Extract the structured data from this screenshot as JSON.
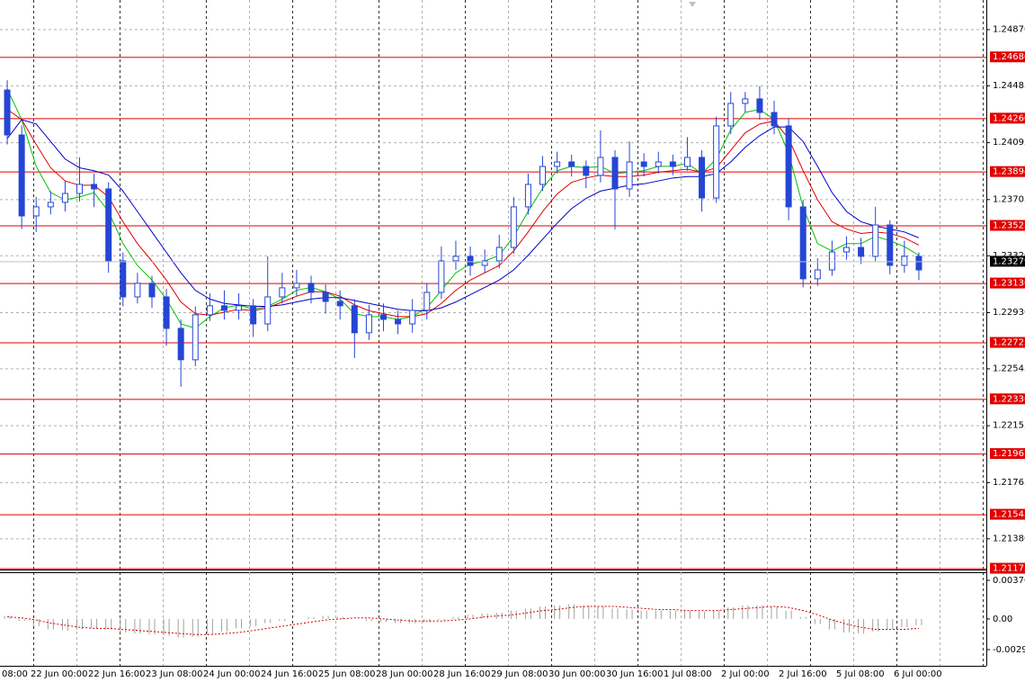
{
  "chart_data": {
    "type": "candlestick",
    "candle_color": "#2546d4",
    "ylim": [
      1.2116,
      1.2507
    ],
    "yticks": [
      {
        "value": 1.2487,
        "label": "1.24870"
      },
      1.24485,
      1.24095,
      1.23705,
      {
        "value": 1.2332,
        "label": "1.23320"
      },
      {
        "value": 1.2293,
        "label": "1.22930"
      },
      1.22545,
      1.22155,
      1.21765,
      {
        "value": 1.2138,
        "label": "1.21380"
      }
    ],
    "grid": true,
    "x_labels": [
      "08:00",
      "22 Jun 00:00",
      "22 Jun 16:00",
      "23 Jun 08:00",
      "24 Jun 00:00",
      "24 Jun 16:00",
      "25 Jun 08:00",
      "28 Jun 00:00",
      "28 Jun 16:00",
      "29 Jun 08:00",
      "30 Jun 00:00",
      "30 Jun 16:00",
      "1 Jul 08:00",
      "2 Jul 00:00",
      "2 Jul 16:00",
      "5 Jul 08:00",
      "6 Jul 00:00"
    ],
    "ohlc": [
      [
        1.24453,
        1.2452,
        1.2408,
        1.24145
      ],
      [
        1.24145,
        1.2421,
        1.235,
        1.2359
      ],
      [
        1.2359,
        1.2372,
        1.2348,
        1.23652
      ],
      [
        1.23652,
        1.2376,
        1.236,
        1.23683
      ],
      [
        1.23683,
        1.2383,
        1.2362,
        1.23744
      ],
      [
        1.23744,
        1.23991,
        1.2369,
        1.23806
      ],
      [
        1.23806,
        1.2388,
        1.2365,
        1.23775
      ],
      [
        1.23775,
        1.2382,
        1.232,
        1.23282
      ],
      [
        1.23282,
        1.2334,
        1.2297,
        1.23035
      ],
      [
        1.23035,
        1.232,
        1.2299,
        1.23128
      ],
      [
        1.23128,
        1.2318,
        1.2296,
        1.23035
      ],
      [
        1.23035,
        1.2309,
        1.227,
        1.22819
      ],
      [
        1.22819,
        1.2288,
        1.22419,
        1.22604
      ],
      [
        1.22604,
        1.2297,
        1.2256,
        1.22912
      ],
      [
        1.22912,
        1.2306,
        1.2287,
        1.22974
      ],
      [
        1.22974,
        1.2308,
        1.2288,
        1.22943
      ],
      [
        1.22943,
        1.2306,
        1.2288,
        1.22974
      ],
      [
        1.22974,
        1.2302,
        1.2276,
        1.2285
      ],
      [
        1.2285,
        1.23313,
        1.228,
        1.23035
      ],
      [
        1.23035,
        1.232,
        1.2299,
        1.23097
      ],
      [
        1.23097,
        1.2322,
        1.2304,
        1.23128
      ],
      [
        1.23128,
        1.2318,
        1.2299,
        1.23066
      ],
      [
        1.23066,
        1.2312,
        1.2292,
        1.23004
      ],
      [
        1.23004,
        1.2308,
        1.2288,
        1.22974
      ],
      [
        1.22974,
        1.2302,
        1.22616,
        1.22789
      ],
      [
        1.22789,
        1.2298,
        1.2274,
        1.22912
      ],
      [
        1.22912,
        1.2299,
        1.228,
        1.22881
      ],
      [
        1.22881,
        1.2294,
        1.2278,
        1.2285
      ],
      [
        1.2285,
        1.2302,
        1.2279,
        1.22943
      ],
      [
        1.22943,
        1.2313,
        1.2288,
        1.23066
      ],
      [
        1.23066,
        1.2338,
        1.2302,
        1.23282
      ],
      [
        1.23282,
        1.2342,
        1.2322,
        1.23313
      ],
      [
        1.23313,
        1.2338,
        1.2318,
        1.23251
      ],
      [
        1.23251,
        1.2336,
        1.232,
        1.23282
      ],
      [
        1.23282,
        1.2346,
        1.2323,
        1.23374
      ],
      [
        1.23374,
        1.2372,
        1.2333,
        1.23652
      ],
      [
        1.23652,
        1.2388,
        1.236,
        1.23806
      ],
      [
        1.23806,
        1.24,
        1.2376,
        1.23929
      ],
      [
        1.23929,
        1.2403,
        1.2388,
        1.2396
      ],
      [
        1.2396,
        1.2401,
        1.2386,
        1.23929
      ],
      [
        1.23929,
        1.2397,
        1.2378,
        1.23868
      ],
      [
        1.23868,
        1.24176,
        1.2382,
        1.23991
      ],
      [
        1.23991,
        1.2404,
        1.23498,
        1.23775
      ],
      [
        1.23775,
        1.241,
        1.2372,
        1.2396
      ],
      [
        1.2396,
        1.2402,
        1.2386,
        1.23929
      ],
      [
        1.23929,
        1.2403,
        1.2388,
        1.2396
      ],
      [
        1.2396,
        1.2401,
        1.2387,
        1.23929
      ],
      [
        1.23929,
        1.2413,
        1.239,
        1.23991
      ],
      [
        1.23991,
        1.2404,
        1.2362,
        1.23713
      ],
      [
        1.23713,
        1.2427,
        1.2368,
        1.24207
      ],
      [
        1.24207,
        1.2444,
        1.2415,
        1.24361
      ],
      [
        1.24361,
        1.2444,
        1.243,
        1.24392
      ],
      [
        1.24392,
        1.2448,
        1.2425,
        1.24299
      ],
      [
        1.24299,
        1.2438,
        1.2415,
        1.24207
      ],
      [
        1.24207,
        1.2426,
        1.2356,
        1.23652
      ],
      [
        1.23652,
        1.237,
        1.231,
        1.23159
      ],
      [
        1.23159,
        1.233,
        1.2311,
        1.2322
      ],
      [
        1.2322,
        1.2342,
        1.2318,
        1.23343
      ],
      [
        1.23343,
        1.2345,
        1.2329,
        1.23374
      ],
      [
        1.23374,
        1.2344,
        1.2326,
        1.23313
      ],
      [
        1.23313,
        1.23652,
        1.2328,
        1.23528
      ],
      [
        1.23528,
        1.2356,
        1.2319,
        1.23251
      ],
      [
        1.23251,
        1.2342,
        1.232,
        1.23313
      ],
      [
        1.23313,
        1.2334,
        1.2315,
        1.2322
      ]
    ],
    "moving_averages": [
      {
        "color": "#00c000",
        "values": [
          1.2446,
          1.2425,
          1.2393,
          1.2375,
          1.237,
          1.2372,
          1.2375,
          1.2362,
          1.234,
          1.2325,
          1.2315,
          1.2302,
          1.2285,
          1.2282,
          1.229,
          1.2296,
          1.2298,
          1.2295,
          1.2297,
          1.2302,
          1.2308,
          1.231,
          1.2307,
          1.2302,
          1.2292,
          1.229,
          1.229,
          1.2288,
          1.229,
          1.2296,
          1.2308,
          1.232,
          1.2326,
          1.2328,
          1.2332,
          1.2345,
          1.2362,
          1.2378,
          1.239,
          1.2393,
          1.2392,
          1.2393,
          1.2388,
          1.2389,
          1.239,
          1.2393,
          1.2393,
          1.2395,
          1.2388,
          1.2398,
          1.2418,
          1.243,
          1.2432,
          1.2425,
          1.2402,
          1.2365,
          1.234,
          1.2335,
          1.234,
          1.234,
          1.2345,
          1.2342,
          1.2338,
          1.2332
        ]
      },
      {
        "color": "#e00000",
        "values": [
          1.2432,
          1.2425,
          1.2408,
          1.2392,
          1.2383,
          1.238,
          1.238,
          1.2372,
          1.2355,
          1.234,
          1.2328,
          1.2315,
          1.23,
          1.2292,
          1.2291,
          1.2293,
          1.2295,
          1.2294,
          1.2296,
          1.23,
          1.2304,
          1.2307,
          1.2307,
          1.2304,
          1.2298,
          1.2294,
          1.2292,
          1.229,
          1.229,
          1.2292,
          1.2299,
          1.2308,
          1.2315,
          1.232,
          1.2325,
          1.2335,
          1.2348,
          1.2362,
          1.2374,
          1.2382,
          1.2385,
          1.2387,
          1.2386,
          1.2386,
          1.2387,
          1.2389,
          1.239,
          1.2391,
          1.2389,
          1.2392,
          1.2404,
          1.2416,
          1.2422,
          1.2424,
          1.2412,
          1.239,
          1.237,
          1.2355,
          1.235,
          1.2347,
          1.2348,
          1.2347,
          1.2344,
          1.2339
        ]
      },
      {
        "color": "#0000c8",
        "values": [
          1.2412,
          1.2425,
          1.2422,
          1.241,
          1.2398,
          1.2392,
          1.239,
          1.2387,
          1.2376,
          1.2362,
          1.2348,
          1.2334,
          1.232,
          1.2308,
          1.2302,
          1.2299,
          1.2298,
          1.2297,
          1.2297,
          1.2298,
          1.23,
          1.2302,
          1.2303,
          1.2303,
          1.2301,
          1.2299,
          1.2297,
          1.2295,
          1.2294,
          1.2294,
          1.2296,
          1.23,
          1.2305,
          1.231,
          1.2315,
          1.2322,
          1.2332,
          1.2343,
          1.2354,
          1.2364,
          1.2371,
          1.2376,
          1.2378,
          1.238,
          1.2381,
          1.2383,
          1.2385,
          1.2386,
          1.2386,
          1.2388,
          1.2396,
          1.2406,
          1.2414,
          1.242,
          1.242,
          1.241,
          1.2393,
          1.2375,
          1.2362,
          1.2355,
          1.2352,
          1.235,
          1.2348,
          1.2344
        ]
      }
    ],
    "levels": {
      "color": "#e00000",
      "values": [
        {
          "value": 1.2468,
          "label": "1.24680"
        },
        {
          "value": 1.2426,
          "label": "1.24260"
        },
        1.23894,
        1.23525,
        {
          "value": 1.2313,
          "label": "1.23130"
        },
        1.22723,
        1.22336,
        1.21961,
        1.21545,
        1.21175
      ]
    },
    "current_price": 1.23279,
    "oscillator": {
      "ylim": [
        -0.00294,
        0.003701
      ],
      "yticks": [
        0.003701,
        {
          "value": 0,
          "label": "0.00"
        },
        -0.00294
      ],
      "histogram_color": "#a0a0a0",
      "signal_color": "#d00000",
      "histogram": [
        0.0003,
        -0.0002,
        -0.0007,
        -0.001,
        -0.0011,
        -0.001,
        -0.0009,
        -0.001,
        -0.0013,
        -0.0014,
        -0.0015,
        -0.0016,
        -0.0018,
        -0.0017,
        -0.0015,
        -0.0012,
        -0.0009,
        -0.0007,
        -0.0004,
        -0.0002,
        0,
        0.0002,
        0.0003,
        0.0002,
        0,
        -0.0002,
        -0.0003,
        -0.0004,
        -0.0004,
        -0.0003,
        -0.0001,
        0.0002,
        0.0004,
        0.0005,
        0.0006,
        0.0008,
        0.001,
        0.0012,
        0.0013,
        0.0014,
        0.0013,
        0.0012,
        0.001,
        0.0009,
        0.0008,
        0.0008,
        0.0008,
        0.0008,
        0.0007,
        0.0008,
        0.0011,
        0.0013,
        0.0013,
        0.0012,
        0.0008,
        0.0002,
        -0.0005,
        -0.001,
        -0.0013,
        -0.0014,
        -0.0012,
        -0.001,
        -0.0008,
        -0.0006
      ],
      "signal": [
        0.0002,
        0.0001,
        -0.0001,
        -0.0004,
        -0.0006,
        -0.0008,
        -0.0009,
        -0.0009,
        -0.001,
        -0.0011,
        -0.0012,
        -0.0013,
        -0.0014,
        -0.0015,
        -0.0015,
        -0.0014,
        -0.0013,
        -0.0011,
        -0.0009,
        -0.0007,
        -0.0005,
        -0.0003,
        -0.0001,
        0,
        0.0001,
        0.0001,
        0,
        -0.0001,
        -0.0002,
        -0.0002,
        -0.0002,
        -0.0001,
        0,
        0.0002,
        0.0003,
        0.0004,
        0.0006,
        0.0008,
        0.0009,
        0.0011,
        0.0012,
        0.0012,
        0.0012,
        0.0011,
        0.001,
        0.0009,
        0.0009,
        0.0008,
        0.0008,
        0.0008,
        0.0009,
        0.001,
        0.0011,
        0.0012,
        0.0011,
        0.0008,
        0.0004,
        -0.0001,
        -0.0005,
        -0.0008,
        -0.001,
        -0.001,
        -0.001,
        -0.0009
      ]
    }
  }
}
